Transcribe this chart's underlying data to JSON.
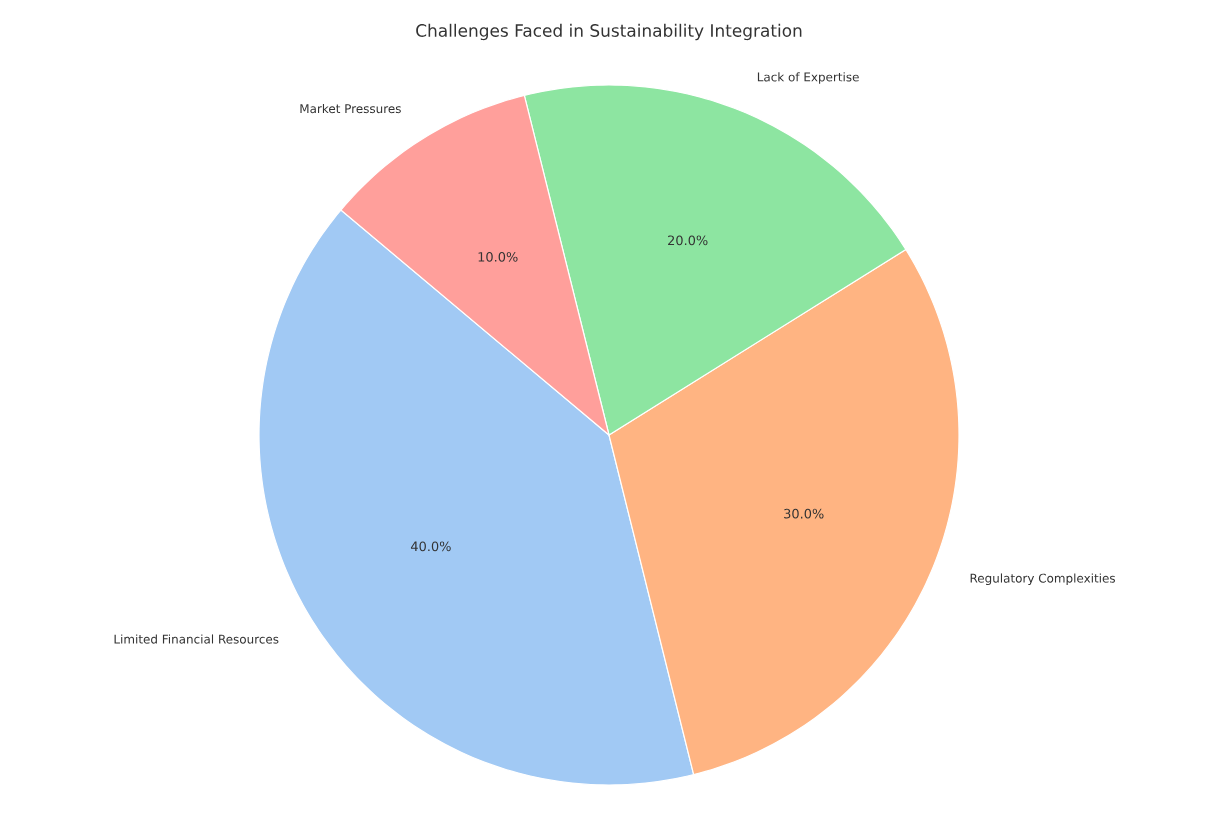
{
  "chart_data": {
    "type": "pie",
    "title": "Challenges Faced in Sustainability Integration",
    "categories": [
      "Limited Financial Resources",
      "Regulatory Complexities",
      "Lack of Expertise",
      "Market Pressures"
    ],
    "values": [
      40,
      30,
      20,
      10
    ],
    "colors": [
      "#a1c9f4",
      "#ffb482",
      "#8de5a1",
      "#ff9f9b"
    ],
    "value_labels": [
      "40.0%",
      "30.0%",
      "20.0%",
      "10.0%"
    ]
  }
}
